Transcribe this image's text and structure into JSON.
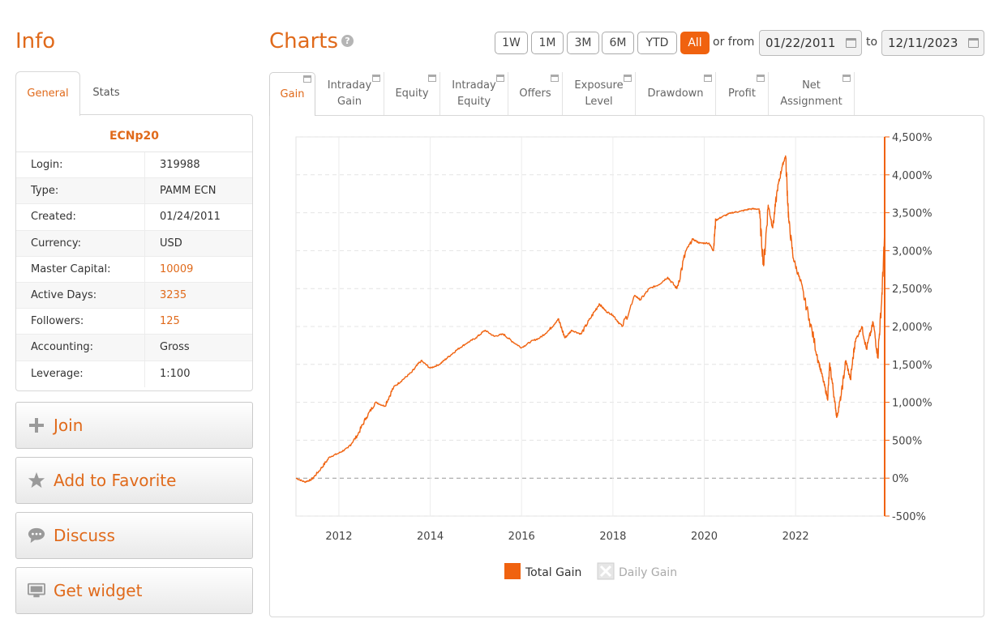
{
  "info": {
    "heading": "Info",
    "tabs": [
      "General",
      "Stats"
    ],
    "account_name": "ECNp20",
    "rows": [
      {
        "label": "Login:",
        "value": "319988",
        "highlight": false
      },
      {
        "label": "Type:",
        "value": "PAMM ECN",
        "highlight": false
      },
      {
        "label": "Created:",
        "value": "01/24/2011",
        "highlight": false
      },
      {
        "label": "Currency:",
        "value": "USD",
        "highlight": false
      },
      {
        "label": "Master Capital:",
        "value": "10009",
        "highlight": true
      },
      {
        "label": "Active Days:",
        "value": "3235",
        "highlight": true
      },
      {
        "label": "Followers:",
        "value": "125",
        "highlight": true
      },
      {
        "label": "Accounting:",
        "value": "Gross",
        "highlight": false
      },
      {
        "label": "Leverage:",
        "value": "1:100",
        "highlight": false
      }
    ]
  },
  "actions": {
    "join": {
      "label": "Join",
      "icon": "plus-icon"
    },
    "favorite": {
      "label": "Add to Favorite",
      "icon": "star-icon"
    },
    "discuss": {
      "label": "Discuss",
      "icon": "speech-bubble-icon"
    },
    "widget": {
      "label": "Get widget",
      "icon": "widget-icon"
    }
  },
  "charts": {
    "heading": "Charts",
    "ranges": [
      "1W",
      "1M",
      "3M",
      "6M",
      "YTD",
      "All"
    ],
    "active_range": "All",
    "or_from_label": "or from",
    "from_date": "01/22/2011",
    "to_label": "to",
    "to_date": "12/11/2023",
    "tabs": [
      "Gain",
      "Intraday Gain",
      "Equity",
      "Intraday Equity",
      "Offers",
      "Exposure Level",
      "Drawdown",
      "Profit",
      "Net Assignment"
    ],
    "active_tab": "Gain"
  },
  "chart_data": {
    "type": "line",
    "title": "",
    "xlabel": "",
    "ylabel": "",
    "x_ticks": [
      "2012",
      "2014",
      "2016",
      "2018",
      "2020",
      "2022"
    ],
    "y_ticks": [
      "4,500%",
      "4,000%",
      "3,500%",
      "3,000%",
      "2,500%",
      "2,000%",
      "1,500%",
      "1,000%",
      "500%",
      "0%",
      "-500%"
    ],
    "xlim": [
      2011.06,
      2023.95
    ],
    "ylim": [
      -500,
      4500
    ],
    "grid": true,
    "legend_position": "bottom",
    "series": [
      {
        "name": "Total Gain",
        "color": "#f0620f",
        "active": true,
        "x": [
          2011.06,
          2011.25,
          2011.4,
          2011.6,
          2011.8,
          2012.0,
          2012.2,
          2012.4,
          2012.6,
          2012.8,
          2013.0,
          2013.2,
          2013.4,
          2013.6,
          2013.8,
          2014.0,
          2014.2,
          2014.4,
          2014.6,
          2014.8,
          2015.0,
          2015.2,
          2015.4,
          2015.6,
          2015.8,
          2016.0,
          2016.2,
          2016.4,
          2016.6,
          2016.8,
          2016.95,
          2017.1,
          2017.3,
          2017.5,
          2017.7,
          2017.85,
          2018.0,
          2018.2,
          2018.5,
          2018.6,
          2018.8,
          2019.0,
          2019.2,
          2019.4,
          2019.6,
          2019.75,
          2019.9,
          2020.1,
          2020.2,
          2020.25,
          2020.4,
          2020.6,
          2020.8,
          2021.0,
          2021.2,
          2021.3,
          2021.4,
          2021.5,
          2021.6,
          2021.7,
          2021.78,
          2021.85,
          2021.95,
          2022.1,
          2022.3,
          2022.5,
          2022.6,
          2022.7,
          2022.75,
          2022.85,
          2022.9,
          2023.0,
          2023.1,
          2023.2,
          2023.3,
          2023.45,
          2023.55,
          2023.7,
          2023.8,
          2023.88,
          2023.95
        ],
        "y": [
          0,
          -50,
          -20,
          120,
          280,
          330,
          400,
          560,
          800,
          1000,
          950,
          1200,
          1300,
          1400,
          1550,
          1450,
          1500,
          1600,
          1700,
          1780,
          1850,
          1950,
          1870,
          1900,
          1800,
          1720,
          1800,
          1850,
          1950,
          2100,
          1850,
          1950,
          1900,
          2100,
          2300,
          2200,
          2150,
          2000,
          2400,
          2350,
          2500,
          2550,
          2650,
          2500,
          3000,
          3150,
          3100,
          3100,
          3000,
          3400,
          3450,
          3500,
          3520,
          3550,
          3550,
          2800,
          3600,
          3300,
          3800,
          4100,
          4250,
          3400,
          2900,
          2600,
          2100,
          1550,
          1300,
          1050,
          1500,
          1050,
          800,
          1100,
          1550,
          1300,
          1800,
          2000,
          1700,
          2050,
          1600,
          2300,
          3200
        ]
      },
      {
        "name": "Daily Gain",
        "color": "#cccccc",
        "active": false,
        "x": [],
        "y": []
      }
    ]
  }
}
